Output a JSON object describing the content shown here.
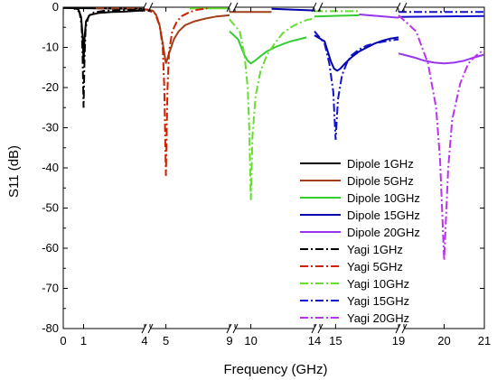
{
  "chart_data": {
    "type": "line",
    "title": "",
    "xlabel": "Frequency (GHz)",
    "ylabel": "S11 (dB)",
    "ylim": [
      -80,
      0
    ],
    "yticks": [
      0,
      -10,
      -20,
      -30,
      -40,
      -50,
      -60,
      -70,
      -80
    ],
    "x_axis_segments": [
      {
        "range": [
          0,
          4
        ],
        "ticks": [
          "0",
          "1",
          "4"
        ]
      },
      {
        "range": [
          4,
          9
        ],
        "ticks": [
          "4",
          "5",
          "9"
        ]
      },
      {
        "range": [
          9,
          14
        ],
        "ticks": [
          "9",
          "10",
          "14"
        ]
      },
      {
        "range": [
          14,
          19
        ],
        "ticks": [
          "14",
          "15",
          "19"
        ]
      },
      {
        "range": [
          19,
          21
        ],
        "ticks": [
          "19",
          "20",
          "21"
        ]
      }
    ],
    "axis_breaks": true,
    "grid": false,
    "legend_position": "right",
    "series": [
      {
        "name": "Dipole 1GHz",
        "color": "#000000",
        "dash": "solid",
        "segment": 0,
        "x": [
          0,
          0.5,
          0.75,
          0.88,
          0.95,
          1.0,
          1.05,
          1.12,
          1.3,
          1.8,
          2.4,
          3.0,
          3.6,
          4.0
        ],
        "y": [
          0,
          -0.1,
          -0.6,
          -2.5,
          -7.0,
          -14.0,
          -7.5,
          -3.5,
          -1.9,
          -1.4,
          -1.2,
          -1.1,
          -0.9,
          -0.8
        ]
      },
      {
        "name": "Dipole 5GHz",
        "color": "#a0401a",
        "dash": "solid",
        "segment": 1,
        "x": [
          4.0,
          4.2,
          4.4,
          4.6,
          4.8,
          5.0,
          5.2,
          5.5,
          5.8,
          6.2,
          6.8,
          7.5,
          8.2,
          9.0
        ],
        "y": [
          -0.4,
          -0.9,
          -2.0,
          -4.5,
          -9.0,
          -14.0,
          -11.5,
          -8.0,
          -6.0,
          -4.5,
          -3.5,
          -2.8,
          -2.3,
          -2.0
        ]
      },
      {
        "name": "Dipole 10GHz",
        "color": "#33cc33",
        "dash": "solid",
        "segment": 2,
        "x": [
          9.0,
          9.2,
          9.4,
          9.6,
          9.8,
          10.0,
          10.2,
          10.6,
          11.0,
          11.5,
          12.0,
          12.5,
          13.0,
          13.5
        ],
        "y": [
          -6.0,
          -8.0,
          -10.0,
          -12.0,
          -13.3,
          -14.0,
          -13.5,
          -12.2,
          -11.0,
          -10.0,
          -9.2,
          -8.5,
          -8.0,
          -7.5
        ]
      },
      {
        "name": "Dipole 15GHz",
        "color": "#0000aa",
        "dash": "solid",
        "segment": 3,
        "x": [
          14.0,
          14.3,
          14.5,
          14.7,
          14.9,
          15.1,
          15.3,
          15.6,
          16.0,
          16.5,
          17.0,
          17.5,
          18.0,
          18.5,
          19.0
        ],
        "y": [
          -7.0,
          -8.5,
          -11.0,
          -13.5,
          -15.3,
          -15.8,
          -15.3,
          -14.0,
          -12.5,
          -11.0,
          -10.0,
          -9.0,
          -8.3,
          -7.8,
          -7.5
        ]
      },
      {
        "name": "Dipole 20GHz",
        "color": "#9933ee",
        "dash": "solid",
        "segment": 4,
        "x": [
          19.0,
          19.25,
          19.5,
          19.75,
          20.0,
          20.25,
          20.5,
          20.75,
          21.0
        ],
        "y": [
          -11.5,
          -12.5,
          -13.3,
          -13.8,
          -14.0,
          -13.8,
          -13.3,
          -12.5,
          -11.8
        ]
      },
      {
        "name": "Yagi 1GHz",
        "color": "#000000",
        "dash": "dashdot",
        "segment": 0,
        "x": [
          0,
          0.5,
          0.8,
          0.9,
          0.95,
          1.0,
          1.05,
          1.1,
          1.25,
          1.5,
          2.0,
          3.0,
          4.0
        ],
        "y": [
          0,
          -0.2,
          -1.2,
          -4.5,
          -12.0,
          -25.0,
          -12.0,
          -5.0,
          -2.2,
          -1.3,
          -0.9,
          -0.7,
          -0.6
        ]
      },
      {
        "name": "Yagi 5GHz",
        "color": "#cc2200",
        "dash": "dashdot",
        "segment": 1,
        "x": [
          4.0,
          4.3,
          4.6,
          4.8,
          4.9,
          5.0,
          5.1,
          5.2,
          5.4,
          5.7,
          6.0,
          6.5,
          7.0,
          7.6
        ],
        "y": [
          -0.4,
          -1.5,
          -4.5,
          -10.0,
          -20.0,
          -42.0,
          -20.0,
          -11.0,
          -6.0,
          -3.5,
          -2.2,
          -1.2,
          -0.6,
          -0.3
        ]
      },
      {
        "name": "Yagi 10GHz",
        "color": "#66dd33",
        "dash": "dashdot",
        "segment": 2,
        "x": [
          9.0,
          9.3,
          9.6,
          9.8,
          9.9,
          10.0,
          10.1,
          10.3,
          10.6,
          11.0,
          11.5,
          12.0,
          12.5,
          13.0,
          13.5,
          14.0
        ],
        "y": [
          -3.0,
          -6.0,
          -12.0,
          -20.0,
          -30.0,
          -48.0,
          -32.0,
          -22.0,
          -16.0,
          -12.0,
          -9.0,
          -6.5,
          -5.0,
          -4.0,
          -3.2,
          -2.8
        ]
      },
      {
        "name": "Yagi 15GHz",
        "color": "#1111cc",
        "dash": "dashdot",
        "segment": 3,
        "x": [
          14.0,
          14.3,
          14.6,
          14.85,
          15.0,
          15.15,
          15.4,
          15.7,
          16.0,
          16.5,
          17.0,
          17.5,
          18.0,
          18.5,
          19.0
        ],
        "y": [
          -6.0,
          -9.0,
          -14.0,
          -21.0,
          -33.0,
          -23.0,
          -17.0,
          -14.0,
          -12.0,
          -10.5,
          -9.5,
          -9.0,
          -8.6,
          -8.3,
          -8.0
        ]
      },
      {
        "name": "Yagi 20GHz",
        "color": "#bb33ee",
        "dash": "dashdot",
        "segment": 4,
        "x": [
          19.0,
          19.3,
          19.6,
          19.8,
          19.9,
          20.0,
          20.1,
          20.2,
          20.4,
          20.6,
          20.8,
          21.0
        ],
        "y": [
          -2.0,
          -6.0,
          -14.0,
          -25.0,
          -38.0,
          -63.0,
          -40.0,
          -28.0,
          -19.0,
          -14.0,
          -12.0,
          -10.5
        ]
      }
    ],
    "offscale_top_segments": [
      {
        "color": "#000000",
        "dash": "solid",
        "x": [
          0,
          4
        ],
        "y": [
          -0.2,
          -0.4
        ]
      },
      {
        "color": "#a0401a",
        "dash": "solid",
        "x": [
          9,
          11.3
        ],
        "y": [
          -1.2,
          -1.2
        ]
      },
      {
        "color": "#0000aa",
        "dash": "solid",
        "x": [
          11.3,
          14
        ],
        "y": [
          -0.4,
          -0.8
        ]
      },
      {
        "color": "#33cc33",
        "dash": "solid",
        "x": [
          14,
          16.5
        ],
        "y": [
          -2.3,
          -2.0
        ]
      },
      {
        "color": "#9933ee",
        "dash": "solid",
        "x": [
          16.5,
          19
        ],
        "y": [
          -1.8,
          -2.6
        ]
      },
      {
        "color": "#a0401a",
        "dash": "dashdot",
        "x": [
          1.6,
          4
        ],
        "y": [
          -0.3,
          -0.3
        ]
      },
      {
        "color": "#66dd33",
        "dash": "solid",
        "x": [
          6.5,
          9
        ],
        "y": [
          -0.3,
          -0.3
        ]
      },
      {
        "color": "#66dd33",
        "dash": "dashdot",
        "x": [
          14,
          16.5
        ],
        "y": [
          -1.0,
          -1.0
        ]
      },
      {
        "color": "#1111cc",
        "dash": "dashdot",
        "x": [
          19,
          21
        ],
        "y": [
          -1.2,
          -1.2
        ]
      },
      {
        "color": "#1111cc",
        "dash": "solid",
        "x": [
          19,
          21
        ],
        "y": [
          -2.4,
          -2.2
        ]
      }
    ]
  }
}
